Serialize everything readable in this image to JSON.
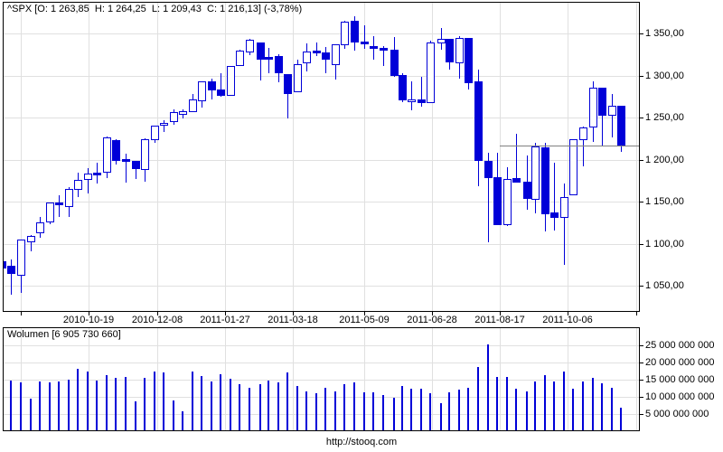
{
  "price_chart": {
    "title": "^SPX [O: 1 263,85  H: 1 264,25  L: 1 209,43  C: 1 216,13] (-3,78%)",
    "y_axis": {
      "ticks": [
        {
          "value": 1350,
          "label": "1 350,00"
        },
        {
          "value": 1300,
          "label": "1 300,00"
        },
        {
          "value": 1250,
          "label": "1 250,00"
        },
        {
          "value": 1200,
          "label": "1 200,00"
        },
        {
          "value": 1150,
          "label": "1 150,00"
        },
        {
          "value": 1100,
          "label": "1 100,00"
        },
        {
          "value": 1050,
          "label": "1 050,00"
        }
      ]
    },
    "x_axis": {
      "ticks": [
        {
          "date": "2010-10-19",
          "label": "2010-10-19"
        },
        {
          "date": "2010-12-08",
          "label": "2010-12-08"
        },
        {
          "date": "2011-01-27",
          "label": "2011-01-27"
        },
        {
          "date": "2011-03-18",
          "label": "2011-03-18"
        },
        {
          "date": "2011-05-09",
          "label": "2011-05-09"
        },
        {
          "date": "2011-06-28",
          "label": "2011-06-28"
        },
        {
          "date": "2011-08-17",
          "label": "2011-08-17"
        },
        {
          "date": "2011-10-06",
          "label": "2011-10-06"
        }
      ],
      "unlabeled_ticks": [
        "2010-08-30",
        "2011-11-25"
      ]
    },
    "last_close_line": {
      "price": 1216.13,
      "from_date": "2011-08-17"
    }
  },
  "volume_chart": {
    "title": "Wolumen [6 905 730 660]",
    "y_axis": {
      "ticks": [
        {
          "value": 25000000000,
          "label": "25 000 000 000"
        },
        {
          "value": 20000000000,
          "label": "20 000 000 000"
        },
        {
          "value": 15000000000,
          "label": "15 000 000 000"
        },
        {
          "value": 10000000000,
          "label": "10 000 000 000"
        },
        {
          "value": 5000000000,
          "label": "5 000 000 000"
        }
      ]
    }
  },
  "footer": {
    "url": "http://stooq.com"
  },
  "colors": {
    "candle": "#0000d8",
    "grid": "#e0e0e0",
    "border": "#000000",
    "last_close_line": "#808080",
    "background": "#ffffff"
  },
  "chart_data": [
    {
      "type": "candlestick",
      "name": "^SPX weekly",
      "title": "^SPX [O: 1 263,85  H: 1 264,25  L: 1 209,43  C: 1 216,13] (-3,78%)",
      "columns": [
        "week_start",
        "open",
        "high",
        "low",
        "close"
      ],
      "ylim": [
        1020,
        1372
      ],
      "grid": true,
      "rows": [
        [
          "2010-08-16",
          1079.25,
          1100.14,
          1069.49,
          1071.69
        ],
        [
          "2010-08-23",
          1073.36,
          1081.58,
          1039.7,
          1064.59
        ],
        [
          "2010-08-30",
          1062.9,
          1105.1,
          1040.88,
          1104.51
        ],
        [
          "2010-09-06",
          1102.6,
          1110.27,
          1091.15,
          1109.55
        ],
        [
          "2010-09-13",
          1113.38,
          1131.47,
          1107.36,
          1125.59
        ],
        [
          "2010-09-20",
          1126.57,
          1148.9,
          1122.79,
          1148.67
        ],
        [
          "2010-09-27",
          1148.64,
          1157.16,
          1132.09,
          1146.24
        ],
        [
          "2010-10-04",
          1144.96,
          1167.73,
          1131.32,
          1165.15
        ],
        [
          "2010-10-11",
          1165.32,
          1184.38,
          1155.71,
          1176.19
        ],
        [
          "2010-10-18",
          1176.83,
          1189.43,
          1159.71,
          1183.08
        ],
        [
          "2010-10-25",
          1184.74,
          1196.14,
          1171.17,
          1183.26
        ],
        [
          "2010-11-01",
          1185.71,
          1227.08,
          1177.65,
          1225.85
        ],
        [
          "2010-11-08",
          1223.24,
          1224.57,
          1194.08,
          1199.21
        ],
        [
          "2010-11-15",
          1200.44,
          1207.43,
          1173.0,
          1199.73
        ],
        [
          "2010-11-22",
          1198.07,
          1198.62,
          1176.91,
          1189.4
        ],
        [
          "2010-11-29",
          1189.08,
          1225.57,
          1174.14,
          1224.71
        ],
        [
          "2010-12-06",
          1223.87,
          1240.4,
          1219.5,
          1240.4
        ],
        [
          "2010-12-13",
          1242.52,
          1246.73,
          1232.85,
          1243.91
        ],
        [
          "2010-12-20",
          1245.76,
          1259.39,
          1241.51,
          1256.77
        ],
        [
          "2010-12-27",
          1254.66,
          1259.9,
          1248.76,
          1257.64
        ],
        [
          "2011-01-03",
          1257.62,
          1278.17,
          1257.62,
          1271.5
        ],
        [
          "2011-01-10",
          1270.84,
          1293.24,
          1262.18,
          1293.24
        ],
        [
          "2011-01-17",
          1293.22,
          1296.06,
          1271.26,
          1283.35
        ],
        [
          "2011-01-24",
          1283.29,
          1302.67,
          1275.1,
          1276.34
        ],
        [
          "2011-01-31",
          1276.5,
          1311.0,
          1276.5,
          1310.87
        ],
        [
          "2011-02-07",
          1311.85,
          1330.79,
          1311.74,
          1329.15
        ],
        [
          "2011-02-14",
          1328.73,
          1344.07,
          1324.61,
          1343.01
        ],
        [
          "2011-02-22",
          1338.91,
          1338.91,
          1294.26,
          1319.88
        ],
        [
          "2011-02-28",
          1321.61,
          1332.28,
          1302.58,
          1321.15
        ],
        [
          "2011-03-07",
          1322.74,
          1325.74,
          1291.99,
          1304.28
        ],
        [
          "2011-03-14",
          1301.19,
          1301.19,
          1249.05,
          1279.21
        ],
        [
          "2011-03-21",
          1281.65,
          1319.18,
          1281.65,
          1313.8
        ],
        [
          "2011-03-28",
          1315.45,
          1337.85,
          1305.26,
          1328.17
        ],
        [
          "2011-04-04",
          1329.48,
          1339.38,
          1322.94,
          1328.17
        ],
        [
          "2011-04-11",
          1327.34,
          1333.77,
          1302.42,
          1319.68
        ],
        [
          "2011-04-18",
          1313.35,
          1337.49,
          1294.7,
          1337.38
        ],
        [
          "2011-04-25",
          1337.14,
          1364.56,
          1331.47,
          1363.61
        ],
        [
          "2011-05-02",
          1365.21,
          1370.58,
          1329.17,
          1340.2
        ],
        [
          "2011-05-09",
          1340.2,
          1359.44,
          1332.03,
          1337.77
        ],
        [
          "2011-05-16",
          1334.77,
          1346.82,
          1318.51,
          1333.27
        ],
        [
          "2011-05-23",
          1333.07,
          1334.62,
          1311.8,
          1331.1
        ],
        [
          "2011-05-31",
          1331.1,
          1345.2,
          1297.9,
          1300.16
        ],
        [
          "2011-06-06",
          1300.26,
          1302.18,
          1268.28,
          1270.98
        ],
        [
          "2011-06-13",
          1271.31,
          1292.5,
          1258.07,
          1271.5
        ],
        [
          "2011-06-20",
          1271.5,
          1298.61,
          1262.87,
          1268.45
        ],
        [
          "2011-06-27",
          1268.44,
          1341.01,
          1267.53,
          1339.67
        ],
        [
          "2011-07-05",
          1339.59,
          1356.48,
          1330.92,
          1343.8
        ],
        [
          "2011-07-11",
          1343.31,
          1343.31,
          1306.51,
          1316.14
        ],
        [
          "2011-07-18",
          1315.94,
          1347.0,
          1295.92,
          1345.02
        ],
        [
          "2011-07-25",
          1344.32,
          1344.32,
          1282.86,
          1292.28
        ],
        [
          "2011-08-01",
          1292.59,
          1307.38,
          1168.09,
          1199.38
        ],
        [
          "2011-08-08",
          1198.48,
          1208.47,
          1101.54,
          1178.81
        ],
        [
          "2011-08-15",
          1178.86,
          1208.47,
          1122.05,
          1123.53
        ],
        [
          "2011-08-22",
          1123.55,
          1190.68,
          1121.09,
          1176.8
        ],
        [
          "2011-08-29",
          1177.91,
          1230.71,
          1173.97,
          1173.97
        ],
        [
          "2011-09-06",
          1173.97,
          1204.4,
          1140.13,
          1154.23
        ],
        [
          "2011-09-12",
          1153.5,
          1220.06,
          1136.07,
          1216.01
        ],
        [
          "2011-09-19",
          1214.99,
          1220.39,
          1114.22,
          1136.43
        ],
        [
          "2011-09-26",
          1136.91,
          1195.86,
          1115.68,
          1131.42
        ],
        [
          "2011-10-03",
          1131.21,
          1171.4,
          1074.77,
          1155.46
        ],
        [
          "2011-10-10",
          1158.15,
          1224.61,
          1158.15,
          1224.58
        ],
        [
          "2011-10-17",
          1224.47,
          1239.03,
          1191.48,
          1238.25
        ],
        [
          "2011-10-24",
          1238.72,
          1292.66,
          1221.06,
          1285.09
        ],
        [
          "2011-10-31",
          1284.96,
          1284.96,
          1215.42,
          1253.23
        ],
        [
          "2011-11-07",
          1253.21,
          1277.55,
          1226.64,
          1263.85
        ],
        [
          "2011-11-14",
          1263.85,
          1264.25,
          1209.43,
          1216.13
        ]
      ]
    },
    {
      "type": "bar",
      "name": "Wolumen",
      "title": "Wolumen [6 905 730 660]",
      "ylim": [
        0,
        30000000000
      ],
      "grid": true,
      "note": "values aligned with chart_data[0].rows week_start dates",
      "values": [
        14000000000,
        14700000000,
        14200000000,
        9400000000,
        14500000000,
        14200000000,
        14500000000,
        14900000000,
        18100000000,
        17500000000,
        14700000000,
        16400000000,
        15400000000,
        15800000000,
        8600000000,
        15600000000,
        17300000000,
        17200000000,
        8900000000,
        5800000000,
        17300000000,
        16000000000,
        14500000000,
        16700000000,
        15200000000,
        13800000000,
        12700000000,
        13600000000,
        14700000000,
        14200000000,
        17000000000,
        13200000000,
        11600000000,
        11100000000,
        12700000000,
        11700000000,
        13600000000,
        14200000000,
        11300000000,
        11400000000,
        10600000000,
        9700000000,
        13200000000,
        12500000000,
        12500000000,
        11000000000,
        8100000000,
        11300000000,
        12200000000,
        12700000000,
        18600000000,
        25200000000,
        15800000000,
        15900000000,
        12500000000,
        11600000000,
        14600000000,
        16300000000,
        14600000000,
        17500000000,
        12500000000,
        14400000000,
        15500000000,
        14000000000,
        12700000000,
        6905730660
      ]
    }
  ]
}
